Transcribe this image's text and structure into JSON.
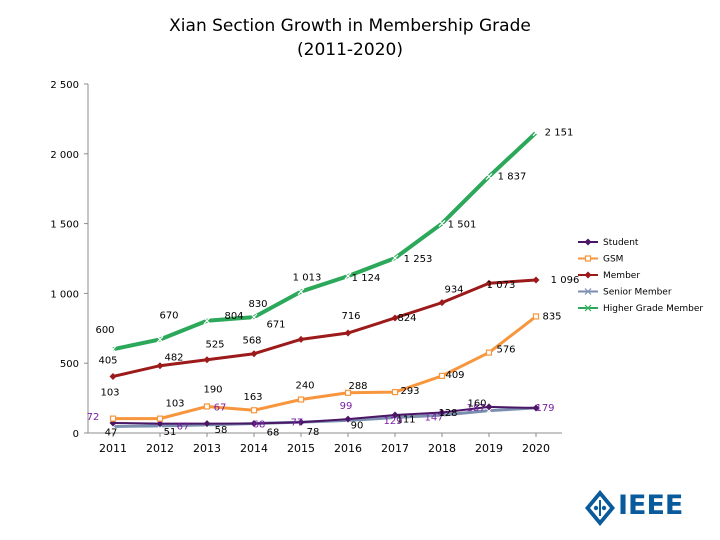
{
  "chart_data": {
    "type": "line",
    "title": "Xian Section Growth in Membership Grade",
    "subtitle": "(2011-2020)",
    "xlabel": "",
    "ylabel": "",
    "ylim": [
      0,
      2500
    ],
    "yticks": [
      "0",
      "500",
      "1 000",
      "1 500",
      "2 000",
      "2 500"
    ],
    "ytick_values": [
      0,
      500,
      1000,
      1500,
      2000,
      2500
    ],
    "categories": [
      "2011",
      "2012",
      "2013",
      "2014",
      "2015",
      "2016",
      "2017",
      "2018",
      "2019",
      "2020"
    ],
    "legend_position": "right",
    "series": [
      {
        "name": "Student",
        "color": "#4b1666",
        "marker": "diamond",
        "values": [
          72,
          67,
          67,
          68,
          77,
          99,
          129,
          147,
          187,
          179
        ],
        "labels": [
          "72",
          "67",
          "67",
          "68",
          "77",
          "99",
          "129",
          "147",
          "187",
          "179"
        ]
      },
      {
        "name": "GSM",
        "color": "#f7963c",
        "marker": "square",
        "values": [
          103,
          103,
          190,
          163,
          240,
          288,
          293,
          409,
          576,
          835
        ],
        "labels": [
          "103",
          "103",
          "190",
          "163",
          "240",
          "288",
          "293",
          "409",
          "576",
          "835"
        ]
      },
      {
        "name": "Member",
        "color": "#9c1a1a",
        "marker": "diamond",
        "values": [
          405,
          482,
          525,
          568,
          671,
          716,
          824,
          934,
          1073,
          1096
        ],
        "labels": [
          "405",
          "482",
          "525",
          "568",
          "671",
          "716",
          "824",
          "934",
          "1 073",
          "1 096"
        ]
      },
      {
        "name": "Senior Member",
        "color": "#7b8eb0",
        "marker": "x",
        "values": [
          47,
          51,
          58,
          68,
          78,
          90,
          111,
          128,
          160,
          180
        ],
        "labels": [
          "47",
          "51",
          "58",
          "68",
          "78",
          "90",
          "111",
          "128",
          "160",
          ""
        ]
      },
      {
        "name": "Higher Grade Member",
        "color": "#2ca85a",
        "marker": "x",
        "values": [
          600,
          670,
          804,
          830,
          1013,
          1124,
          1253,
          1501,
          1837,
          2151
        ],
        "labels": [
          "600",
          "670",
          "804",
          "830",
          "1 013",
          "1 124",
          "1 253",
          "1 501",
          "1 837",
          "2 151"
        ]
      }
    ]
  },
  "logo": {
    "text": "IEEE",
    "color": "#0a5b9c"
  }
}
